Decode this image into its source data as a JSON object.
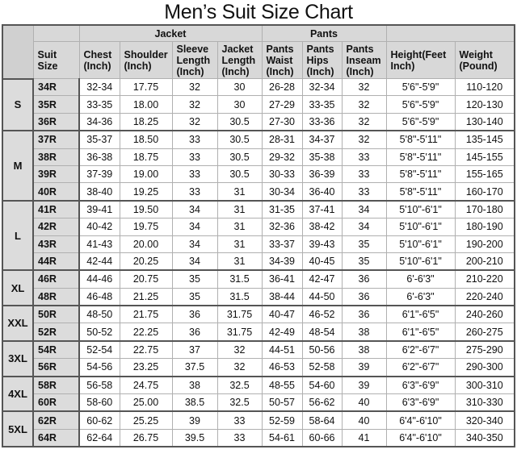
{
  "title": "Men’s Suit Size Chart",
  "header": {
    "groups": {
      "jacket": "Jacket",
      "pants": "Pants"
    },
    "columns": [
      "Suit Size",
      "Chest (Inch)",
      "Shoulder (Inch)",
      "Sleeve Length (Inch)",
      "Jacket Length (Inch)",
      "Pants Waist (Inch)",
      "Pants Hips (Inch)",
      "Pants Inseam (Inch)",
      "Height(Feet Inch)",
      "Weight (Pound)"
    ]
  },
  "groups": [
    {
      "label": "S",
      "rows": [
        [
          "34R",
          "32-34",
          "17.75",
          "32",
          "30",
          "26-28",
          "32-34",
          "32",
          "5'6\"-5'9\"",
          "110-120"
        ],
        [
          "35R",
          "33-35",
          "18.00",
          "32",
          "30",
          "27-29",
          "33-35",
          "32",
          "5'6\"-5'9\"",
          "120-130"
        ],
        [
          "36R",
          "34-36",
          "18.25",
          "32",
          "30.5",
          "27-30",
          "33-36",
          "32",
          "5'6\"-5'9\"",
          "130-140"
        ]
      ]
    },
    {
      "label": "M",
      "rows": [
        [
          "37R",
          "35-37",
          "18.50",
          "33",
          "30.5",
          "28-31",
          "34-37",
          "32",
          "5'8\"-5'11\"",
          "135-145"
        ],
        [
          "38R",
          "36-38",
          "18.75",
          "33",
          "30.5",
          "29-32",
          "35-38",
          "33",
          "5'8\"-5'11\"",
          "145-155"
        ],
        [
          "39R",
          "37-39",
          "19.00",
          "33",
          "30.5",
          "30-33",
          "36-39",
          "33",
          "5'8\"-5'11\"",
          "155-165"
        ],
        [
          "40R",
          "38-40",
          "19.25",
          "33",
          "31",
          "30-34",
          "36-40",
          "33",
          "5'8\"-5'11\"",
          "160-170"
        ]
      ]
    },
    {
      "label": "L",
      "rows": [
        [
          "41R",
          "39-41",
          "19.50",
          "34",
          "31",
          "31-35",
          "37-41",
          "34",
          "5'10\"-6'1\"",
          "170-180"
        ],
        [
          "42R",
          "40-42",
          "19.75",
          "34",
          "31",
          "32-36",
          "38-42",
          "34",
          "5'10\"-6'1\"",
          "180-190"
        ],
        [
          "43R",
          "41-43",
          "20.00",
          "34",
          "31",
          "33-37",
          "39-43",
          "35",
          "5'10\"-6'1\"",
          "190-200"
        ],
        [
          "44R",
          "42-44",
          "20.25",
          "34",
          "31",
          "34-39",
          "40-45",
          "35",
          "5'10\"-6'1\"",
          "200-210"
        ]
      ]
    },
    {
      "label": "XL",
      "rows": [
        [
          "46R",
          "44-46",
          "20.75",
          "35",
          "31.5",
          "36-41",
          "42-47",
          "36",
          "6'-6'3\"",
          "210-220"
        ],
        [
          "48R",
          "46-48",
          "21.25",
          "35",
          "31.5",
          "38-44",
          "44-50",
          "36",
          "6'-6'3\"",
          "220-240"
        ]
      ]
    },
    {
      "label": "XXL",
      "rows": [
        [
          "50R",
          "48-50",
          "21.75",
          "36",
          "31.75",
          "40-47",
          "46-52",
          "36",
          "6'1\"-6'5\"",
          "240-260"
        ],
        [
          "52R",
          "50-52",
          "22.25",
          "36",
          "31.75",
          "42-49",
          "48-54",
          "38",
          "6'1\"-6'5\"",
          "260-275"
        ]
      ]
    },
    {
      "label": "3XL",
      "rows": [
        [
          "54R",
          "52-54",
          "22.75",
          "37",
          "32",
          "44-51",
          "50-56",
          "38",
          "6'2\"-6'7\"",
          "275-290"
        ],
        [
          "56R",
          "54-56",
          "23.25",
          "37.5",
          "32",
          "46-53",
          "52-58",
          "39",
          "6'2\"-6'7\"",
          "290-300"
        ]
      ]
    },
    {
      "label": "4XL",
      "rows": [
        [
          "58R",
          "56-58",
          "24.75",
          "38",
          "32.5",
          "48-55",
          "54-60",
          "39",
          "6'3\"-6'9\"",
          "300-310"
        ],
        [
          "60R",
          "58-60",
          "25.00",
          "38.5",
          "32.5",
          "50-57",
          "56-62",
          "40",
          "6'3\"-6'9\"",
          "310-330"
        ]
      ]
    },
    {
      "label": "5XL",
      "rows": [
        [
          "62R",
          "60-62",
          "25.25",
          "39",
          "33",
          "52-59",
          "58-64",
          "40",
          "6'4\"-6'10\"",
          "320-340"
        ],
        [
          "64R",
          "62-64",
          "26.75",
          "39.5",
          "33",
          "54-61",
          "60-66",
          "41",
          "6'4\"-6'10\"",
          "340-350"
        ]
      ]
    }
  ]
}
